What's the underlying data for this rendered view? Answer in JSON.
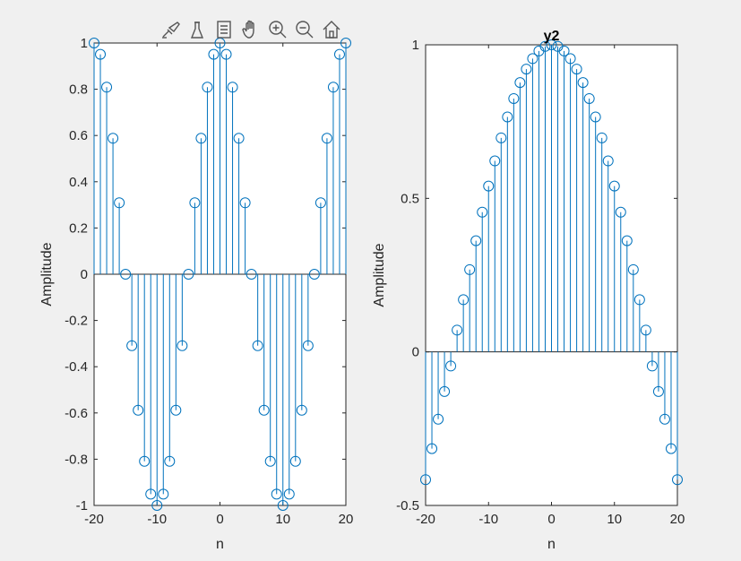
{
  "toolbar": {
    "buttons": [
      {
        "name": "brush-icon"
      },
      {
        "name": "data-tips-icon"
      },
      {
        "name": "legend-icon"
      },
      {
        "name": "pan-hand-icon"
      },
      {
        "name": "zoom-in-icon"
      },
      {
        "name": "zoom-out-icon"
      },
      {
        "name": "home-icon"
      }
    ]
  },
  "colors": {
    "stem": "#0072bd",
    "axis": "#262626",
    "background": "#f0f0f0",
    "plot": "#ffffff"
  },
  "chart_data": [
    {
      "type": "stem",
      "title": "",
      "xlabel": "n",
      "ylabel": "Amplitude",
      "xlim": [
        -20,
        20
      ],
      "ylim": [
        -1,
        1
      ],
      "xticks": [
        -20,
        -10,
        0,
        10,
        20
      ],
      "yticks": [
        -1,
        -0.8,
        -0.6,
        -0.4,
        -0.2,
        0,
        0.2,
        0.4,
        0.6,
        0.8,
        1
      ],
      "ytick_labels": [
        "-1",
        "-0.8",
        "-0.6",
        "-0.4",
        "-0.2",
        "0",
        "0.2",
        "0.4",
        "0.6",
        "0.8",
        "1"
      ],
      "x": [
        -20,
        -19,
        -18,
        -17,
        -16,
        -15,
        -14,
        -13,
        -12,
        -11,
        -10,
        -9,
        -8,
        -7,
        -6,
        -5,
        -4,
        -3,
        -2,
        -1,
        0,
        1,
        2,
        3,
        4,
        5,
        6,
        7,
        8,
        9,
        10,
        11,
        12,
        13,
        14,
        15,
        16,
        17,
        18,
        19,
        20
      ],
      "y": [
        1,
        0.951,
        0.809,
        0.588,
        0.309,
        0,
        -0.309,
        -0.588,
        -0.809,
        -0.951,
        -1,
        -0.951,
        -0.809,
        -0.588,
        -0.309,
        0,
        0.309,
        0.588,
        0.809,
        0.951,
        1,
        0.951,
        0.809,
        0.588,
        0.309,
        0,
        -0.309,
        -0.588,
        -0.809,
        -0.951,
        -1,
        -0.951,
        -0.809,
        -0.588,
        -0.309,
        0,
        0.309,
        0.588,
        0.809,
        0.951,
        1
      ],
      "grid": false
    },
    {
      "type": "stem",
      "title": "y2",
      "xlabel": "n",
      "ylabel": "Amplitude",
      "xlim": [
        -20,
        20
      ],
      "ylim": [
        -0.5,
        1
      ],
      "xticks": [
        -20,
        -10,
        0,
        10,
        20
      ],
      "yticks": [
        -0.5,
        0,
        0.5,
        1
      ],
      "ytick_labels": [
        "-0.5",
        "0",
        "0.5",
        "1"
      ],
      "x": [
        -20,
        -19,
        -18,
        -17,
        -16,
        -15,
        -14,
        -13,
        -12,
        -11,
        -10,
        -9,
        -8,
        -7,
        -6,
        -5,
        -4,
        -3,
        -2,
        -1,
        0,
        1,
        2,
        3,
        4,
        5,
        6,
        7,
        8,
        9,
        10,
        11,
        12,
        13,
        14,
        15,
        16,
        17,
        18,
        19,
        20
      ],
      "y": [
        -0.416,
        -0.315,
        -0.219,
        -0.129,
        -0.046,
        0.071,
        0.17,
        0.268,
        0.362,
        0.455,
        0.54,
        0.622,
        0.697,
        0.765,
        0.825,
        0.877,
        0.921,
        0.955,
        0.98,
        0.995,
        1,
        0.995,
        0.98,
        0.955,
        0.921,
        0.877,
        0.825,
        0.765,
        0.697,
        0.622,
        0.54,
        0.455,
        0.362,
        0.268,
        0.17,
        0.071,
        -0.046,
        -0.129,
        -0.219,
        -0.315,
        -0.416
      ],
      "grid": false
    }
  ]
}
